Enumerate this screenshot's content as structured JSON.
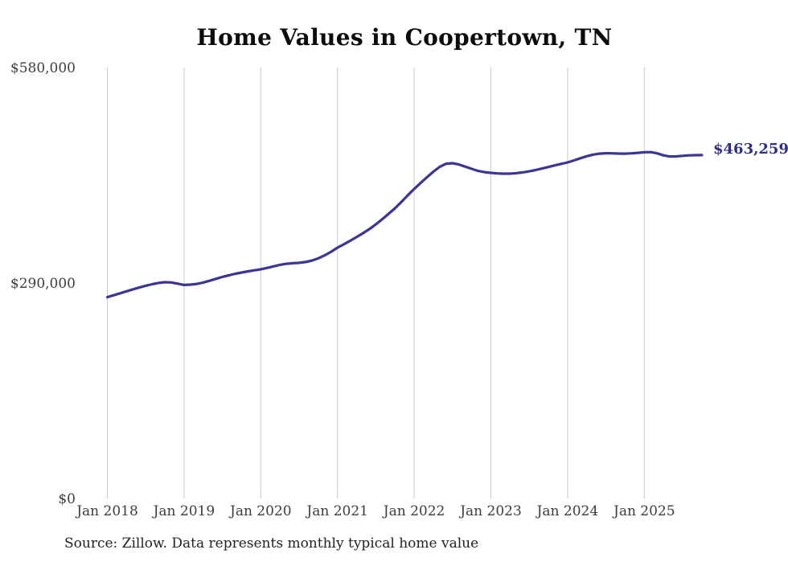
{
  "title": "Home Values in Coopertown, TN",
  "source_note": "Source: Zillow. Data represents monthly typical home value",
  "chart_data": {
    "type": "line",
    "title": "Home Values in Coopertown, TN",
    "series_name": "Monthly typical home value",
    "xlabel": "",
    "ylabel": "",
    "ylim": [
      0,
      580000
    ],
    "grid": "vertical-only",
    "legend": "none",
    "end_label": "$463,259",
    "end_value": 463259,
    "y_ticks": [
      {
        "label": "$0",
        "value": 0
      },
      {
        "label": "$290,000",
        "value": 290000
      },
      {
        "label": "$580,000",
        "value": 580000
      }
    ],
    "x_tick_labels": [
      "Jan 2018",
      "Jan 2019",
      "Jan 2020",
      "Jan 2021",
      "Jan 2022",
      "Jan 2023",
      "Jan 2024",
      "Jan 2025"
    ],
    "colors": {
      "line": "#3b3596",
      "end_label": "#322d87",
      "grid": "#c9c9c9",
      "axis_text": "#3d3d3d"
    },
    "x_start": "2018-01",
    "x_end": "2025-10",
    "x_interval": "month",
    "months": [
      "2018-01",
      "2018-02",
      "2018-03",
      "2018-04",
      "2018-05",
      "2018-06",
      "2018-07",
      "2018-08",
      "2018-09",
      "2018-10",
      "2018-11",
      "2018-12",
      "2019-01",
      "2019-02",
      "2019-03",
      "2019-04",
      "2019-05",
      "2019-06",
      "2019-07",
      "2019-08",
      "2019-09",
      "2019-10",
      "2019-11",
      "2019-12",
      "2020-01",
      "2020-02",
      "2020-03",
      "2020-04",
      "2020-05",
      "2020-06",
      "2020-07",
      "2020-08",
      "2020-09",
      "2020-10",
      "2020-11",
      "2020-12",
      "2021-01",
      "2021-02",
      "2021-03",
      "2021-04",
      "2021-05",
      "2021-06",
      "2021-07",
      "2021-08",
      "2021-09",
      "2021-10",
      "2021-11",
      "2021-12",
      "2022-01",
      "2022-02",
      "2022-03",
      "2022-04",
      "2022-05",
      "2022-06",
      "2022-07",
      "2022-08",
      "2022-09",
      "2022-10",
      "2022-11",
      "2022-12",
      "2023-01",
      "2023-02",
      "2023-03",
      "2023-04",
      "2023-05",
      "2023-06",
      "2023-07",
      "2023-08",
      "2023-09",
      "2023-10",
      "2023-11",
      "2023-12",
      "2024-01",
      "2024-02",
      "2024-03",
      "2024-04",
      "2024-05",
      "2024-06",
      "2024-07",
      "2024-08",
      "2024-09",
      "2024-10",
      "2024-11",
      "2024-12",
      "2025-01",
      "2025-02",
      "2025-03",
      "2025-04",
      "2025-05",
      "2025-06",
      "2025-07",
      "2025-08",
      "2025-09",
      "2025-10"
    ],
    "values": [
      272000,
      274600,
      277200,
      279900,
      282500,
      285000,
      287400,
      289500,
      291200,
      292200,
      291800,
      290200,
      288500,
      288900,
      289900,
      291700,
      294100,
      296700,
      299300,
      301500,
      303500,
      305200,
      306800,
      308200,
      309500,
      311400,
      313500,
      315500,
      316900,
      317700,
      318200,
      319300,
      321300,
      324300,
      328300,
      333200,
      338700,
      343200,
      348000,
      353000,
      358200,
      363700,
      370000,
      377000,
      384200,
      391700,
      400200,
      409200,
      417700,
      425600,
      433500,
      441000,
      447400,
      451700,
      452300,
      450600,
      447700,
      444700,
      441900,
      440300,
      439300,
      438600,
      438200,
      438300,
      438900,
      440000,
      441400,
      443100,
      445200,
      447200,
      449400,
      451400,
      453400,
      456100,
      459000,
      461700,
      463900,
      465200,
      465700,
      465600,
      465300,
      465200,
      465600,
      466300,
      467000,
      467200,
      465600,
      462900,
      461300,
      461500,
      462300,
      462900,
      463100,
      463259
    ]
  }
}
